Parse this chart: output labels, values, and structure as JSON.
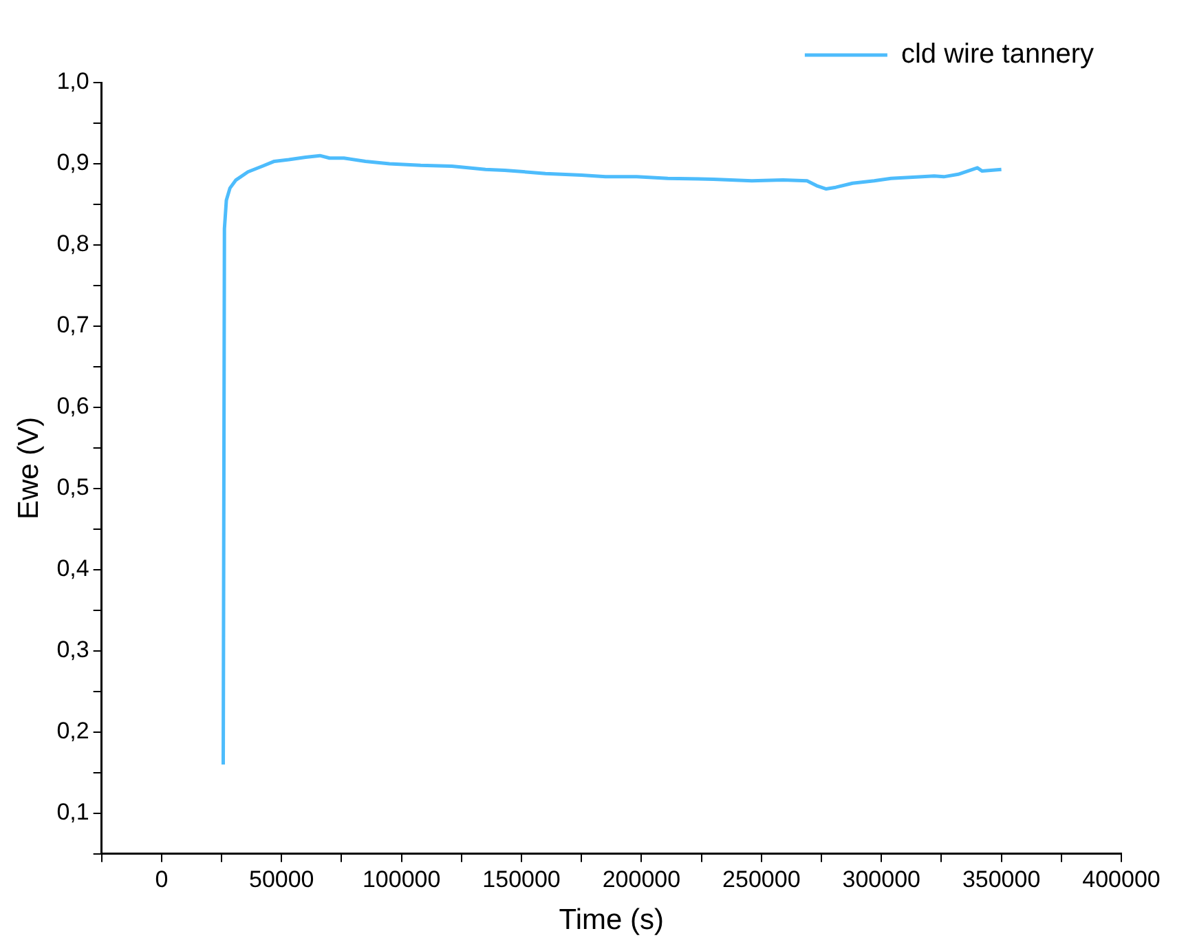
{
  "chart_data": {
    "type": "line",
    "xlabel": "Time (s)",
    "ylabel": "Ewe (V)",
    "xlim": [
      -25000,
      400000
    ],
    "ylim": [
      0.05,
      1.0
    ],
    "xticks": [
      {
        "value": -25000,
        "label": null
      },
      0,
      {
        "value": 25000,
        "label": null
      },
      50000,
      {
        "value": 75000,
        "label": null
      },
      100000,
      {
        "value": 125000,
        "label": null
      },
      150000,
      {
        "value": 175000,
        "label": null
      },
      200000,
      {
        "value": 225000,
        "label": null
      },
      250000,
      {
        "value": 275000,
        "label": null
      },
      300000,
      {
        "value": 325000,
        "label": null
      },
      350000,
      {
        "value": 375000,
        "label": null
      },
      400000
    ],
    "yticks": [
      {
        "value": 0.05,
        "label": null
      },
      {
        "value": 0.1,
        "label": "0,1"
      },
      {
        "value": 0.15,
        "label": null
      },
      {
        "value": 0.2,
        "label": "0,2"
      },
      {
        "value": 0.25,
        "label": null
      },
      {
        "value": 0.3,
        "label": "0,3"
      },
      {
        "value": 0.35,
        "label": null
      },
      {
        "value": 0.4,
        "label": "0,4"
      },
      {
        "value": 0.45,
        "label": null
      },
      {
        "value": 0.5,
        "label": "0,5"
      },
      {
        "value": 0.55,
        "label": null
      },
      {
        "value": 0.6,
        "label": "0,6"
      },
      {
        "value": 0.65,
        "label": null
      },
      {
        "value": 0.7,
        "label": "0,7"
      },
      {
        "value": 0.75,
        "label": null
      },
      {
        "value": 0.8,
        "label": "0,8"
      },
      {
        "value": 0.85,
        "label": null
      },
      {
        "value": 0.9,
        "label": "0,9"
      },
      {
        "value": 0.95,
        "label": null
      },
      {
        "value": 1.0,
        "label": "1,0"
      }
    ],
    "grid": false,
    "legend": "top right",
    "marker": "none",
    "line_style": "solid",
    "series": [
      {
        "name": "cld wire tannery",
        "color": "#4dbcfc",
        "x": [
          25700,
          26200,
          27000,
          28500,
          31000,
          36000,
          42000,
          47000,
          53000,
          60000,
          66000,
          70000,
          76000,
          85000,
          95000,
          108000,
          121000,
          135000,
          143000,
          160000,
          175000,
          185000,
          198000,
          211000,
          230000,
          246000,
          259000,
          269000,
          273000,
          277000,
          281000,
          288000,
          297000,
          304000,
          317000,
          322000,
          326000,
          332000,
          340000,
          342000,
          350000
        ],
        "values": [
          0.16,
          0.82,
          0.855,
          0.87,
          0.88,
          0.89,
          0.897,
          0.903,
          0.905,
          0.908,
          0.91,
          0.907,
          0.907,
          0.903,
          0.9,
          0.898,
          0.897,
          0.893,
          0.892,
          0.888,
          0.886,
          0.884,
          0.884,
          0.882,
          0.881,
          0.879,
          0.88,
          0.879,
          0.873,
          0.869,
          0.871,
          0.876,
          0.879,
          0.882,
          0.884,
          0.885,
          0.884,
          0.887,
          0.895,
          0.891,
          0.893
        ]
      }
    ]
  }
}
